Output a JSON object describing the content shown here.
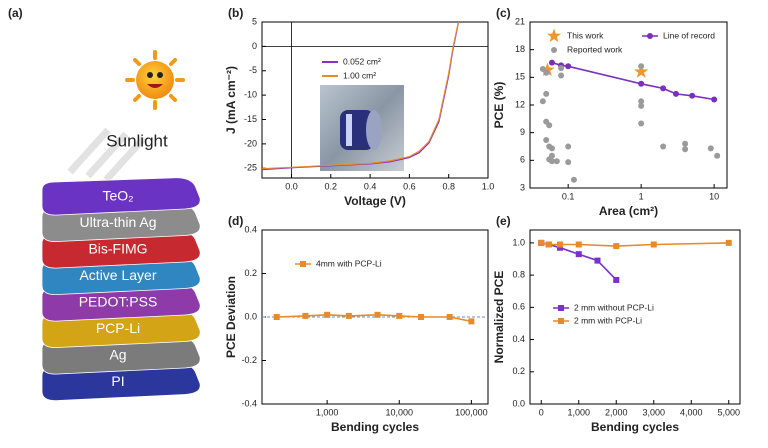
{
  "diagram": {
    "label": "(a)",
    "caption": "Sunlight",
    "layers": [
      {
        "label": "TeO₂",
        "color": "#6b33c4"
      },
      {
        "label": "Ultra-thin Ag",
        "color": "#8c8c8c"
      },
      {
        "label": "Bis-FIMG",
        "color": "#c62a30"
      },
      {
        "label": "Active Layer",
        "color": "#2f86c0"
      },
      {
        "label": "PEDOT:PSS",
        "color": "#8e3aa8"
      },
      {
        "label": "PCP-Li",
        "color": "#d3a416"
      },
      {
        "label": "Ag",
        "color": "#7b7b7b"
      },
      {
        "label": "PI",
        "color": "#2b379c"
      }
    ]
  },
  "chart_data": [
    {
      "type": "line",
      "label": "(b)",
      "xlabel": "Voltage (V)",
      "ylabel": "J (mA cm⁻²)",
      "xlim": [
        -0.15,
        1.0
      ],
      "xticks": [
        {
          "value": 0,
          "label": "0.0"
        },
        0.2,
        0.4,
        0.6,
        0.8,
        {
          "value": 1,
          "label": "1.0"
        }
      ],
      "ylim": [
        -27,
        5
      ],
      "yticks": [
        5,
        0,
        -5,
        -10,
        -15,
        -20,
        -25
      ],
      "zero_lines": true,
      "series": [
        {
          "name": "0.052 cm²",
          "color": "#8a2fc9",
          "x": [
            -0.15,
            0,
            0.2,
            0.4,
            0.5,
            0.6,
            0.65,
            0.7,
            0.75,
            0.8,
            0.82,
            0.84,
            0.85
          ],
          "values": [
            -25.3,
            -24.9,
            -24.5,
            -24.1,
            -23.7,
            -22.8,
            -21.8,
            -19.8,
            -15.5,
            -6,
            -1,
            3,
            5
          ]
        },
        {
          "name": "1.00 cm²",
          "color": "#e8892a",
          "x": [
            -0.15,
            0,
            0.2,
            0.4,
            0.5,
            0.6,
            0.65,
            0.7,
            0.75,
            0.8,
            0.82,
            0.84,
            0.85
          ],
          "values": [
            -25.1,
            -24.8,
            -24.4,
            -24.0,
            -23.5,
            -22.6,
            -21.5,
            -19.5,
            -15,
            -5.5,
            -0.6,
            3.3,
            5
          ]
        }
      ]
    },
    {
      "type": "scatter",
      "label": "(c)",
      "xlabel": "Area (cm²)",
      "ylabel": "PCE (%)",
      "xlog": true,
      "xlim": [
        0.03,
        15
      ],
      "xticks": [
        0.1,
        1,
        10
      ],
      "ylim": [
        3,
        21
      ],
      "yticks": [
        3,
        6,
        9,
        12,
        15,
        18,
        21
      ],
      "series": [
        {
          "name": "This work",
          "color": "#f0962a",
          "marker": "star",
          "x": [
            0.052,
            1.0
          ],
          "values": [
            15.8,
            15.6
          ]
        },
        {
          "name": "Line of record",
          "color": "#7a2fc0",
          "marker": "circle",
          "line": true,
          "x": [
            0.06,
            0.08,
            0.1,
            1,
            2,
            3,
            5,
            10
          ],
          "values": [
            16.6,
            16.3,
            16.2,
            14.3,
            13.8,
            13.2,
            13.0,
            12.6
          ]
        },
        {
          "name": "Reported work",
          "color": "#9a9a9a",
          "marker": "circle",
          "x": [
            0.045,
            0.05,
            0.05,
            0.045,
            0.05,
            0.055,
            0.05,
            0.055,
            0.06,
            0.055,
            0.06,
            0.07,
            0.06,
            0.08,
            0.08,
            0.1,
            0.1,
            0.12,
            1,
            1,
            1,
            1,
            2,
            4,
            4,
            9,
            11
          ],
          "values": [
            15.9,
            15.5,
            13.2,
            12.4,
            10.2,
            9.8,
            8.2,
            7.5,
            6.5,
            6.1,
            5.9,
            5.9,
            7.3,
            16.0,
            15.2,
            7.5,
            5.8,
            3.9,
            12.4,
            11.9,
            10.0,
            16.2,
            7.5,
            7.8,
            7.2,
            7.3,
            6.5
          ]
        }
      ]
    },
    {
      "type": "line",
      "label": "(d)",
      "xlabel": "Bending cycles",
      "ylabel": "PCE Deviation",
      "xlog": true,
      "xlim": [
        125,
        170000
      ],
      "xticks": [
        {
          "value": 1000,
          "label": "1,000"
        },
        {
          "value": 10000,
          "label": "10,000"
        },
        {
          "value": 100000,
          "label": "100,000"
        }
      ],
      "ylim": [
        -0.4,
        0.4
      ],
      "yticks": [
        -0.4,
        -0.2,
        {
          "value": 0,
          "label": "0.0"
        },
        0.2,
        0.4
      ],
      "zero_dash": true,
      "series": [
        {
          "name": "4mm with PCP-Li",
          "color": "#e8892a",
          "marker": "square",
          "line": true,
          "x": [
            200,
            500,
            1000,
            2000,
            5000,
            10000,
            20000,
            50000,
            100000
          ],
          "values": [
            0,
            0.005,
            0.01,
            0.005,
            0.01,
            0.005,
            0,
            0,
            -0.02
          ]
        }
      ]
    },
    {
      "type": "line",
      "label": "(e)",
      "xlabel": "Bending cycles",
      "ylabel": "Normalized PCE",
      "xlim": [
        -300,
        5300
      ],
      "xticks": [
        0,
        {
          "value": 1000,
          "label": "1,000"
        },
        {
          "value": 2000,
          "label": "2,000"
        },
        {
          "value": 3000,
          "label": "3,000"
        },
        {
          "value": 4000,
          "label": "4,000"
        },
        {
          "value": 5000,
          "label": "5,000"
        }
      ],
      "ylim": [
        0,
        1.08
      ],
      "yticks": [
        {
          "value": 0,
          "label": "0.0"
        },
        0.2,
        0.4,
        0.6,
        0.8,
        {
          "value": 1,
          "label": "1.0"
        }
      ],
      "series": [
        {
          "name": "2 mm without PCP-Li",
          "color": "#7a2fd0",
          "marker": "square",
          "line": true,
          "x": [
            0,
            200,
            500,
            1000,
            1500,
            2000
          ],
          "values": [
            1.0,
            0.99,
            0.97,
            0.93,
            0.89,
            0.77
          ]
        },
        {
          "name": "2 mm with PCP-Li",
          "color": "#e8892a",
          "marker": "square",
          "line": true,
          "x": [
            0,
            200,
            500,
            1000,
            2000,
            3000,
            5000
          ],
          "values": [
            1.0,
            0.99,
            0.99,
            0.99,
            0.98,
            0.99,
            1.0
          ]
        }
      ]
    }
  ]
}
